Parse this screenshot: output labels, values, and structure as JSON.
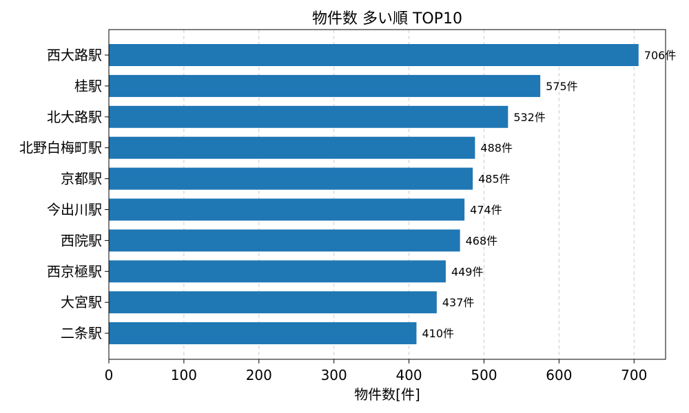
{
  "chart_data": {
    "type": "bar",
    "orientation": "horizontal",
    "title": "物件数 多い順 TOP10",
    "xlabel": "物件数[件]",
    "ylabel": "",
    "xlim": [
      0,
      742
    ],
    "xticks": [
      0,
      100,
      200,
      300,
      400,
      500,
      600,
      700
    ],
    "grid": "x-dashed",
    "bar_color": "#1f77b4",
    "value_suffix": "件",
    "categories": [
      "西大路駅",
      "桂駅",
      "北大路駅",
      "北野白梅町駅",
      "京都駅",
      "今出川駅",
      "西院駅",
      "西京極駅",
      "大宮駅",
      "二条駅"
    ],
    "values": [
      706,
      575,
      532,
      488,
      485,
      474,
      468,
      449,
      437,
      410
    ]
  }
}
